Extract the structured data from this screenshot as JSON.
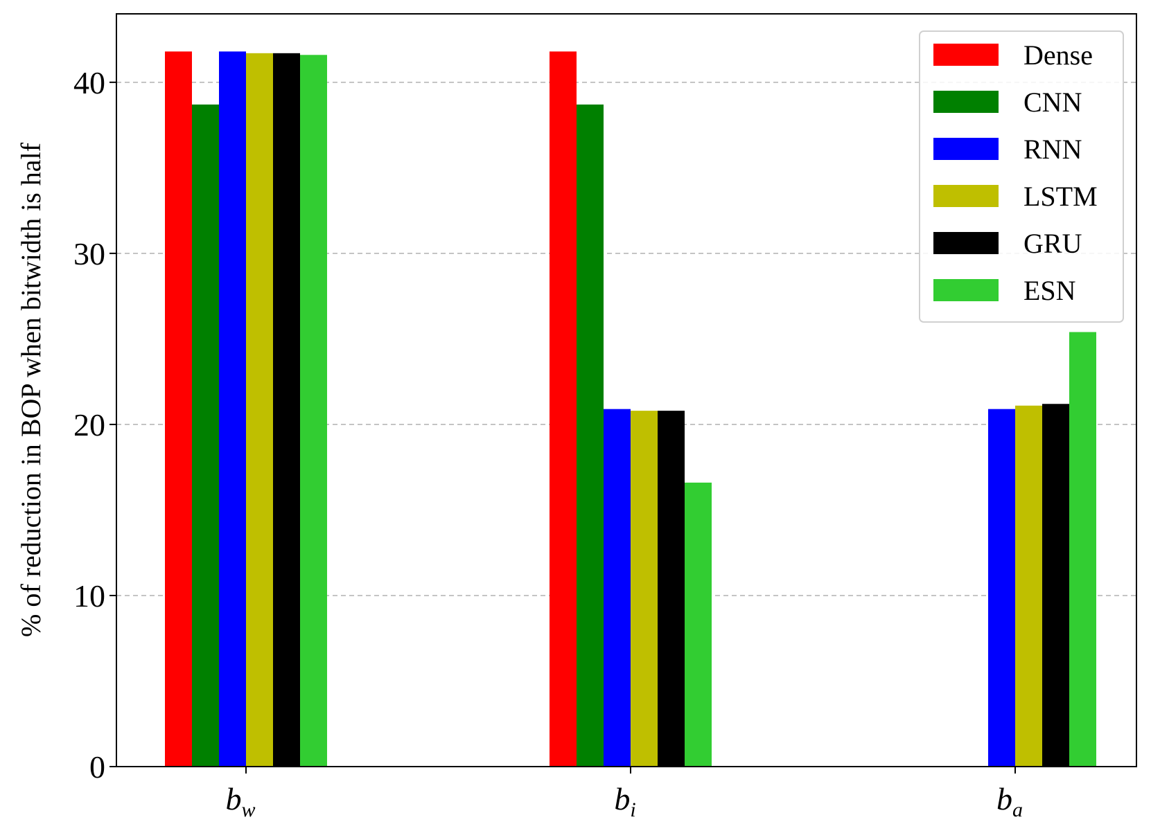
{
  "chart_data": {
    "type": "bar",
    "title": "",
    "xlabel": "",
    "ylabel": "% of reduction in BOP when bitwidth is half",
    "categories": [
      {
        "base": "b",
        "sub": "w"
      },
      {
        "base": "b",
        "sub": "i"
      },
      {
        "base": "b",
        "sub": "a"
      }
    ],
    "ylim": [
      0,
      44
    ],
    "yticks": [
      0,
      10,
      20,
      30,
      40
    ],
    "grid": "y-dashed",
    "legend_position": "top-right",
    "series": [
      {
        "name": "Dense",
        "color": "#ff0000",
        "values": [
          41.8,
          41.8,
          0
        ]
      },
      {
        "name": "CNN",
        "color": "#008000",
        "values": [
          38.7,
          38.7,
          0
        ]
      },
      {
        "name": "RNN",
        "color": "#0000ff",
        "values": [
          41.8,
          20.9,
          20.9
        ]
      },
      {
        "name": "LSTM",
        "color": "#bfbf00",
        "values": [
          41.7,
          20.8,
          21.1
        ]
      },
      {
        "name": "GRU",
        "color": "#000000",
        "values": [
          41.7,
          20.8,
          21.2
        ]
      },
      {
        "name": "ESN",
        "color": "#32cd32",
        "values": [
          41.6,
          16.6,
          25.4
        ]
      }
    ]
  }
}
